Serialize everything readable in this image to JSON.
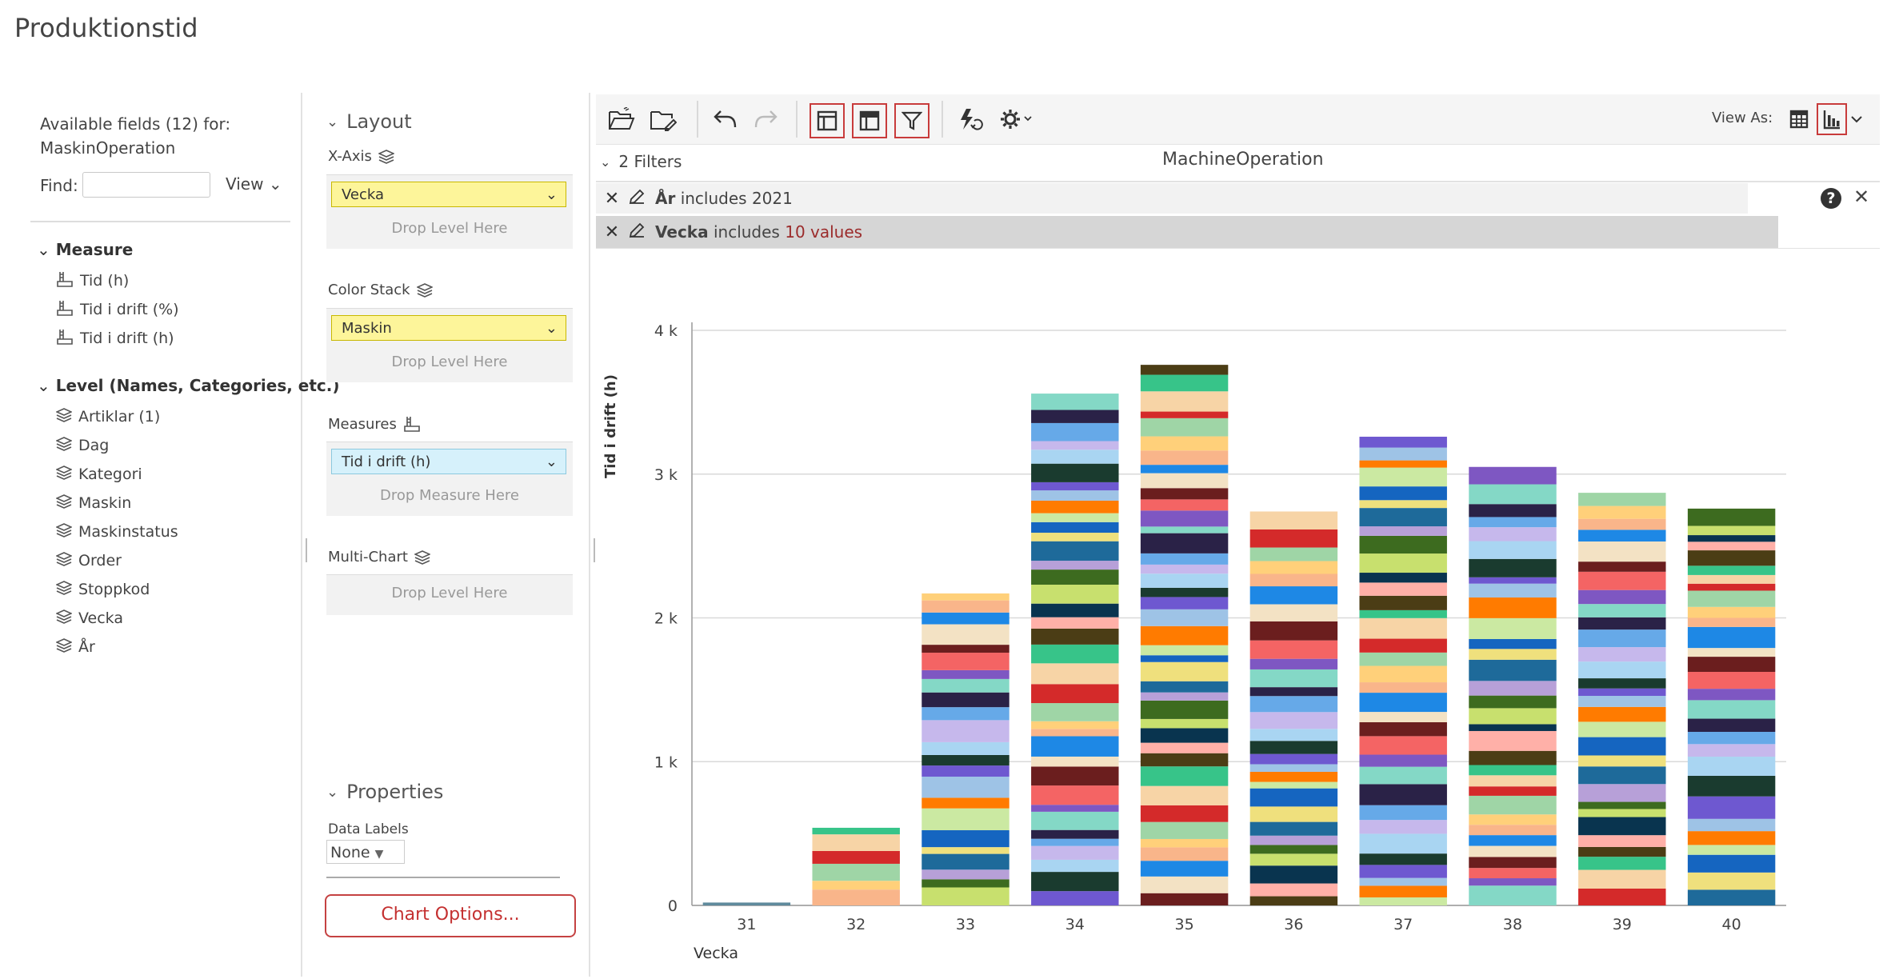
{
  "page": {
    "title": "Produktionstid"
  },
  "fields": {
    "header": "Available fields (12) for: MaskinOperation",
    "find_label": "Find:",
    "find_value": "",
    "view_label": "View",
    "measure_heading": "Measure",
    "measures": [
      "Tid (h)",
      "Tid i drift (%)",
      "Tid i drift (h)"
    ],
    "level_heading": "Level (Names, Categories, etc.)",
    "levels": [
      "Artiklar (1)",
      "Dag",
      "Kategori",
      "Maskin",
      "Maskinstatus",
      "Order",
      "Stoppkod",
      "Vecka",
      "År"
    ]
  },
  "layout": {
    "heading": "Layout",
    "xaxis_label": "X-Axis",
    "xaxis_value": "Vecka",
    "color_stack_label": "Color Stack",
    "color_stack_value": "Maskin",
    "measures_label": "Measures",
    "measures_value": "Tid i drift (h)",
    "multichart_label": "Multi-Chart",
    "drop_level": "Drop Level Here",
    "drop_measure": "Drop Measure Here",
    "properties_heading": "Properties",
    "data_labels_label": "Data Labels",
    "data_labels_value": "None",
    "chart_options": "Chart Options..."
  },
  "toolbar": {
    "view_as": "View As:",
    "icons": [
      "open-folder-icon",
      "save-icon",
      "undo-icon",
      "redo-icon",
      "layout-panel-icon",
      "table-layout-icon",
      "filter-icon",
      "refresh-icon",
      "settings-icon",
      "grid-view-icon",
      "bar-chart-view-icon"
    ]
  },
  "filters": {
    "toggle_label": "2 Filters",
    "source_name": "MachineOperation",
    "items": [
      {
        "field": "År",
        "op": "includes",
        "value": "2021"
      },
      {
        "field": "Vecka",
        "op": "includes",
        "value": "10 values"
      }
    ]
  },
  "chart_data": {
    "type": "bar",
    "stacked": true,
    "xlabel": "Vecka",
    "ylabel": "Tid i drift (h)",
    "categories": [
      "31",
      "32",
      "33",
      "34",
      "35",
      "36",
      "37",
      "38",
      "39",
      "40"
    ],
    "totals": [
      20,
      540,
      2170,
      3560,
      3760,
      2740,
      3260,
      3050,
      2870,
      2760
    ],
    "ylim": [
      0,
      4000
    ],
    "yticks": [
      0,
      1000,
      2000,
      3000,
      4000
    ],
    "ytick_labels": [
      "0",
      "1 k",
      "2 k",
      "3 k",
      "4 k"
    ],
    "grid": true,
    "legend": "none",
    "palette": [
      "#c6b8ec",
      "#f7d4a6",
      "#9ec3e6",
      "#f9b58a",
      "#efe07d",
      "#f46464",
      "#c8e06e",
      "#66a9e8",
      "#37c489",
      "#6e58d0",
      "#ffd07a",
      "#1565c0",
      "#6b1e1e",
      "#3d6b1f",
      "#2a2247",
      "#4b3d15",
      "#1a3b2f",
      "#9fd5a6",
      "#cbe9a2",
      "#f3e2c4",
      "#b7a0d8",
      "#84d8c6",
      "#ffb0a8",
      "#a9d5f2",
      "#d42a2a",
      "#ff7b00",
      "#1e88e5",
      "#1e6a9a",
      "#7e57c2",
      "#09344f"
    ]
  }
}
